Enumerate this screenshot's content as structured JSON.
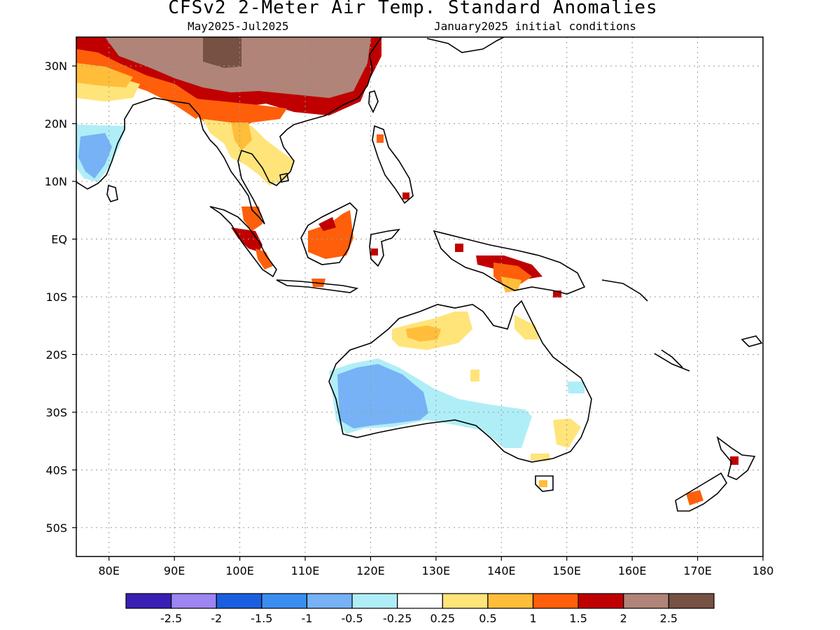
{
  "header": {
    "title": "CFSv2 2-Meter Air Temp. Standard Anomalies",
    "period": "May2025-Jul2025",
    "init": "January2025 initial conditions"
  },
  "axes": {
    "lat_labels": [
      "30N",
      "20N",
      "10N",
      "EQ",
      "10S",
      "20S",
      "30S",
      "40S",
      "50S"
    ],
    "lat_values": [
      30,
      20,
      10,
      0,
      -10,
      -20,
      -30,
      -40,
      -50
    ],
    "lon_labels": [
      "80E",
      "90E",
      "100E",
      "110E",
      "120E",
      "130E",
      "140E",
      "150E",
      "160E",
      "170E",
      "180"
    ],
    "lon_values": [
      80,
      90,
      100,
      110,
      120,
      130,
      140,
      150,
      160,
      170,
      180
    ],
    "lon_range": [
      75,
      180
    ],
    "lat_range": [
      -55,
      35
    ],
    "grid": true
  },
  "colorbar": {
    "colors": [
      "#3a1fb5",
      "#9d85f2",
      "#1a5fe0",
      "#3a8ef0",
      "#76b2f5",
      "#b0eef7",
      "#ffffff",
      "#ffe47a",
      "#ffbd3a",
      "#ff5f0a",
      "#c00000",
      "#b08478",
      "#765144"
    ],
    "labels": [
      "-2.5",
      "-2",
      "-1.5",
      "-1",
      "-0.5",
      "-0.25",
      "0.25",
      "0.5",
      "1",
      "1.5",
      "2",
      "2.5"
    ]
  },
  "regions": [
    {
      "name": "central-asia-plateau",
      "color": "#b08478"
    },
    {
      "name": "central-asia-peak",
      "color": "#765144"
    },
    {
      "name": "china-warm-rim",
      "color": "#c00000"
    },
    {
      "name": "indochina-warm",
      "color": "#ff5f0a"
    },
    {
      "name": "borneo-warm",
      "color": "#ff5f0a"
    },
    {
      "name": "new-guinea-warm",
      "color": "#ff5f0a"
    },
    {
      "name": "north-australia-warm",
      "color": "#ffbd3a"
    },
    {
      "name": "west-australia-cool",
      "color": "#76b2f5"
    },
    {
      "name": "south-australia-cool",
      "color": "#b0eef7"
    },
    {
      "name": "india-cool",
      "color": "#76b2f5"
    }
  ]
}
